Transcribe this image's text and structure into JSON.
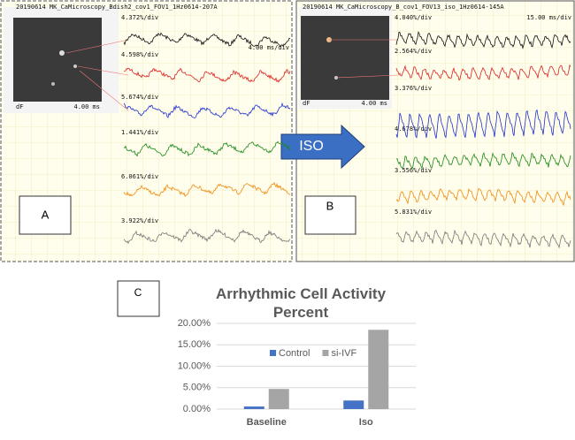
{
  "panel_a": {
    "file_title": "20190614 MK_CaMicroscopy_Bdish2_cov1_FOV1_1Hz0614-207A",
    "time_scale": "4.00 ms/div",
    "scale_labels": [
      "4.372%/div",
      "4.598%/div",
      "5.674%/div",
      "1.441%/div",
      "6.061%/div",
      "3.922%/div"
    ],
    "image_labels": [
      "dF",
      "4.00 ms"
    ],
    "label": "A"
  },
  "panel_b": {
    "file_title": "20190614 MK_CaMicroscopy_B_cov1_FOV13_iso_1Hz0614-145A",
    "time_scale": "15.00 ms/div",
    "scale_labels": [
      "4.040%/div",
      "2.564%/div",
      "3.376%/div",
      "4.678%/div",
      "3.556%/div",
      "5.831%/div"
    ],
    "image_labels": [
      "dF",
      "4.00 ms"
    ],
    "label": "B"
  },
  "arrow_label": "ISO",
  "panel_c_label": "C",
  "chart_data": {
    "type": "bar",
    "title": "Arrhythmic Cell Activity Percent",
    "categories": [
      "Baseline",
      "Iso"
    ],
    "series": [
      {
        "name": "Control",
        "color": "#4472c4",
        "values": [
          0.6,
          2.0
        ]
      },
      {
        "name": "si-IVF",
        "color": "#a5a5a5",
        "values": [
          4.7,
          18.5
        ]
      }
    ],
    "ylim": [
      0,
      20
    ],
    "yticks": [
      {
        "value": 0,
        "label": "0.00%"
      },
      {
        "value": 5,
        "label": "5.00%"
      },
      {
        "value": 10,
        "label": "10.00%"
      },
      {
        "value": 15,
        "label": "15.00%"
      },
      {
        "value": 20,
        "label": "20.00%"
      }
    ],
    "grid": true,
    "legend": "top"
  }
}
